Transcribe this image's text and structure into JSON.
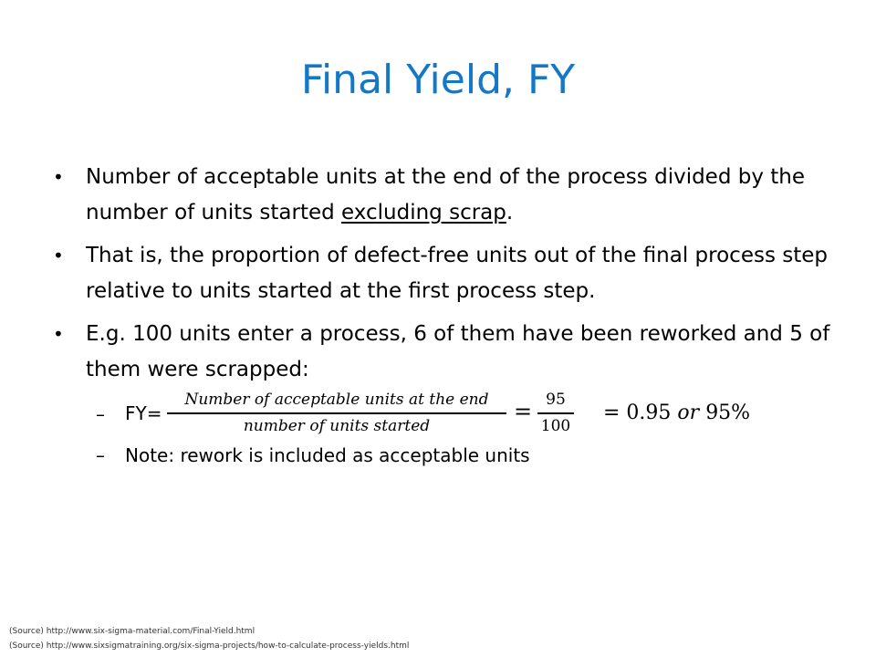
{
  "title": "Final Yield, FY",
  "bullets": [
    {
      "text_before": "Number of acceptable units at the end of the process divided by the number of units started ",
      "underlined": "excluding scrap",
      "text_after": "."
    },
    {
      "text": "That is, the proportion of defect-free units out of the final process step relative to units started at the first process step."
    },
    {
      "text": "E.g. 100 units enter a process, 6 of them have been reworked and 5 of them were scrapped:"
    }
  ],
  "sub_bullets": {
    "formula": {
      "label": "FY=",
      "numerator": "Number of acceptable units at the end",
      "denominator": "number of units started",
      "equals": "=",
      "value_numerator": "95",
      "value_denominator": "100",
      "result_value": "= 0.95",
      "result_or": "or",
      "result_percent": "95%"
    },
    "note": "Note: rework is included as acceptable units"
  },
  "sources": [
    "(Source) http://www.six-sigma-material.com/Final-Yield.html",
    "(Source) http://www.sixsigmatraining.org/six-sigma-projects/how-to-calculate-process-yields.html"
  ]
}
